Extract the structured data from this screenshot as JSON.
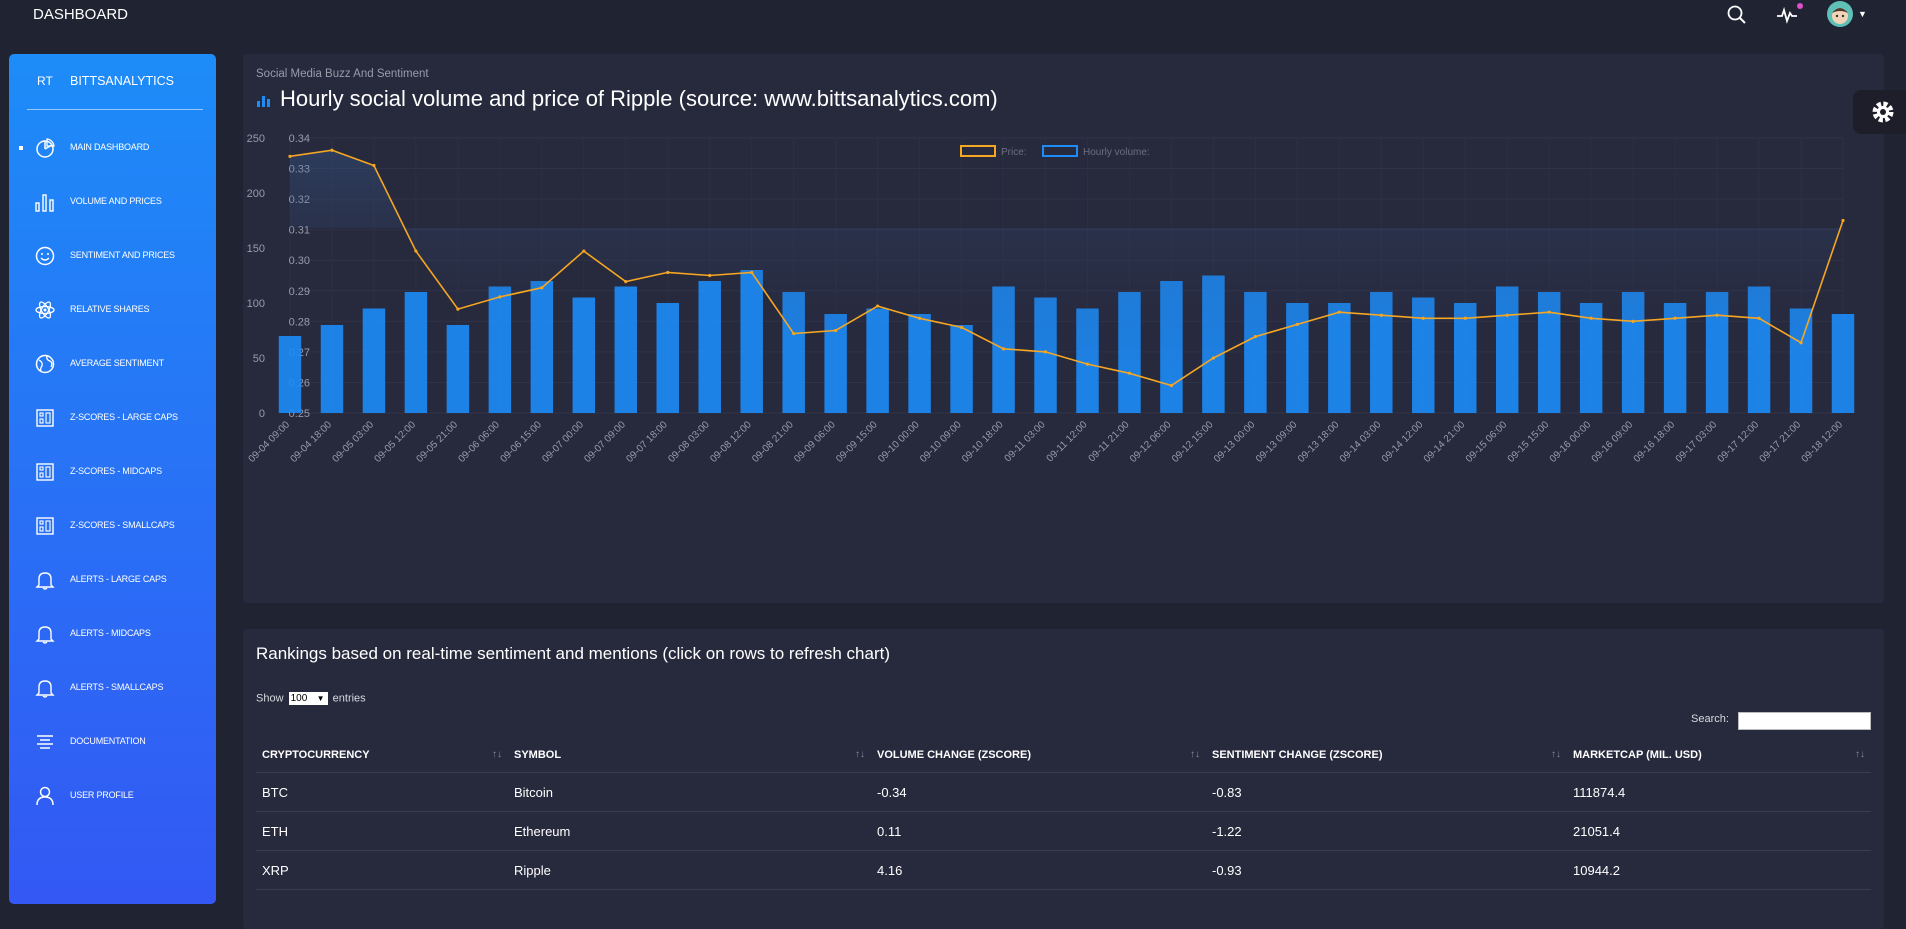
{
  "topbar": {
    "title": "DASHBOARD"
  },
  "sidebar": {
    "logo_short": "RT",
    "logo_name": "BITTSANALYTICS",
    "items": [
      {
        "label": "MAIN DASHBOARD",
        "icon": "pie-chart-icon"
      },
      {
        "label": "VOLUME AND PRICES",
        "icon": "bar-chart-icon"
      },
      {
        "label": "SENTIMENT AND PRICES",
        "icon": "smiley-icon"
      },
      {
        "label": "RELATIVE SHARES",
        "icon": "atom-icon"
      },
      {
        "label": "AVERAGE SENTIMENT",
        "icon": "globe-icon"
      },
      {
        "label": "Z-SCORES - LARGE CAPS",
        "icon": "building-icon"
      },
      {
        "label": "Z-SCORES - MIDCAPS",
        "icon": "building-icon"
      },
      {
        "label": "Z-SCORES - SMALLCAPS",
        "icon": "building-icon"
      },
      {
        "label": "ALERTS - LARGE CAPS",
        "icon": "bell-icon"
      },
      {
        "label": "ALERTS - MIDCAPS",
        "icon": "bell-icon"
      },
      {
        "label": "ALERTS - SMALLCAPS",
        "icon": "bell-icon"
      },
      {
        "label": "DOCUMENTATION",
        "icon": "align-center-icon"
      },
      {
        "label": "USER PROFILE",
        "icon": "user-icon"
      }
    ]
  },
  "chart_card": {
    "subtitle": "Social Media Buzz And Sentiment",
    "title": "Hourly social volume and price of Ripple (source: www.bittsanalytics.com)"
  },
  "chart_data": {
    "type": "bar",
    "legend": [
      {
        "name": "Price:",
        "color": "#f5a623"
      },
      {
        "name": "Hourly volume:",
        "color": "#1d8cf8"
      }
    ],
    "legend_position": "top-center",
    "grid": true,
    "y_left": {
      "ticks": [
        "250",
        "200",
        "150",
        "100",
        "50",
        "0"
      ],
      "range": [
        0,
        250
      ]
    },
    "y_right": {
      "ticks": [
        "0.34",
        "0.33",
        "0.32",
        "0.31",
        "0.30",
        "0.29",
        "0.28",
        "0.27",
        "0.26",
        "0.25"
      ],
      "range": [
        0.25,
        0.34
      ]
    },
    "x_tick_labels": [
      "09-04 09:00",
      "09-04 18:00",
      "09-05 03:00",
      "09-05 12:00",
      "09-05 21:00",
      "09-06 06:00",
      "09-06 15:00",
      "09-07 00:00",
      "09-07 09:00",
      "09-07 18:00",
      "09-08 03:00",
      "09-08 12:00",
      "09-08 21:00",
      "09-09 06:00",
      "09-09 15:00",
      "09-10 00:00",
      "09-10 09:00",
      "09-10 18:00",
      "09-11 03:00",
      "09-11 12:00",
      "09-11 21:00",
      "09-12 06:00",
      "09-12 15:00",
      "09-13 00:00",
      "09-13 09:00",
      "09-13 18:00",
      "09-14 03:00",
      "09-14 12:00",
      "09-14 21:00",
      "09-15 06:00",
      "09-15 15:00",
      "09-16 00:00",
      "09-16 09:00",
      "09-16 18:00",
      "09-17 03:00",
      "09-17 12:00",
      "09-17 21:00",
      "09-18 12:00"
    ],
    "volume_by_tick": [
      70,
      80,
      95,
      110,
      80,
      115,
      120,
      105,
      115,
      100,
      120,
      130,
      110,
      90,
      95,
      90,
      80,
      115,
      105,
      95,
      110,
      120,
      125,
      110,
      100,
      100,
      110,
      105,
      100,
      115,
      110,
      100,
      110,
      100,
      110,
      115,
      95,
      90
    ],
    "price_by_tick": [
      0.334,
      0.336,
      0.331,
      0.303,
      0.284,
      0.288,
      0.291,
      0.303,
      0.293,
      0.296,
      0.295,
      0.296,
      0.276,
      0.277,
      0.285,
      0.281,
      0.278,
      0.271,
      0.27,
      0.266,
      0.263,
      0.259,
      0.268,
      0.275,
      0.279,
      0.283,
      0.282,
      0.281,
      0.281,
      0.282,
      0.283,
      0.281,
      0.28,
      0.281,
      0.282,
      0.281,
      0.273,
      0.313
    ]
  },
  "table_card": {
    "title": "Rankings based on real-time sentiment and mentions (click on rows to refresh chart)",
    "show_label": "Show",
    "show_value": "100",
    "entries_label": "entries",
    "search_label": "Search:",
    "columns": [
      "CRYPTOCURRENCY",
      "SYMBOL",
      "VOLUME CHANGE (ZSCORE)",
      "SENTIMENT CHANGE (ZSCORE)",
      "MARKETCAP (MIL. USD)"
    ],
    "rows": [
      [
        "BTC",
        "Bitcoin",
        "-0.34",
        "-0.83",
        "111874.4"
      ],
      [
        "ETH",
        "Ethereum",
        "0.11",
        "-1.22",
        "21051.4"
      ],
      [
        "XRP",
        "Ripple",
        "4.16",
        "-0.93",
        "10944.2"
      ]
    ]
  }
}
